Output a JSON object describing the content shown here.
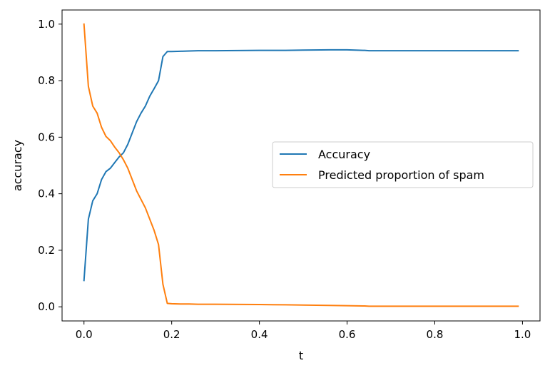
{
  "chart_data": {
    "type": "line",
    "xlabel": "t",
    "ylabel": "accuracy",
    "xlim": [
      -0.05,
      1.04
    ],
    "ylim": [
      -0.05,
      1.05
    ],
    "xticks": [
      0.0,
      0.2,
      0.4,
      0.6,
      0.8,
      1.0
    ],
    "xtick_labels": [
      "0.0",
      "0.2",
      "0.4",
      "0.6",
      "0.8",
      "1.0"
    ],
    "yticks": [
      0.0,
      0.2,
      0.4,
      0.6,
      0.8,
      1.0
    ],
    "ytick_labels": [
      "0.0",
      "0.2",
      "0.4",
      "0.6",
      "0.8",
      "1.0"
    ],
    "grid": false,
    "legend_position": "center-right",
    "series": [
      {
        "name": "Accuracy",
        "color": "#1f77b4",
        "x": [
          0.0,
          0.01,
          0.02,
          0.03,
          0.04,
          0.05,
          0.06,
          0.07,
          0.08,
          0.09,
          0.1,
          0.11,
          0.12,
          0.13,
          0.14,
          0.15,
          0.16,
          0.17,
          0.18,
          0.19,
          0.2,
          0.22,
          0.24,
          0.26,
          0.3,
          0.4,
          0.46,
          0.5,
          0.56,
          0.6,
          0.64,
          0.65,
          0.7,
          0.8,
          0.9,
          0.99
        ],
        "y": [
          0.093,
          0.31,
          0.375,
          0.4,
          0.45,
          0.478,
          0.49,
          0.51,
          0.53,
          0.545,
          0.575,
          0.615,
          0.655,
          0.685,
          0.71,
          0.745,
          0.772,
          0.8,
          0.885,
          0.903,
          0.903,
          0.904,
          0.905,
          0.906,
          0.906,
          0.907,
          0.907,
          0.908,
          0.909,
          0.909,
          0.907,
          0.906,
          0.906,
          0.906,
          0.906,
          0.906
        ]
      },
      {
        "name": "Predicted proportion of spam",
        "color": "#ff7f0e",
        "x": [
          0.0,
          0.01,
          0.02,
          0.03,
          0.04,
          0.05,
          0.06,
          0.07,
          0.08,
          0.09,
          0.1,
          0.11,
          0.12,
          0.13,
          0.14,
          0.15,
          0.16,
          0.17,
          0.18,
          0.19,
          0.2,
          0.22,
          0.24,
          0.26,
          0.3,
          0.4,
          0.46,
          0.5,
          0.56,
          0.6,
          0.64,
          0.65,
          0.7,
          0.8,
          0.9,
          0.99
        ],
        "y": [
          1.0,
          0.78,
          0.71,
          0.685,
          0.635,
          0.603,
          0.588,
          0.565,
          0.545,
          0.52,
          0.49,
          0.45,
          0.41,
          0.38,
          0.35,
          0.31,
          0.27,
          0.22,
          0.08,
          0.012,
          0.011,
          0.01,
          0.01,
          0.009,
          0.009,
          0.008,
          0.007,
          0.006,
          0.005,
          0.004,
          0.003,
          0.002,
          0.002,
          0.002,
          0.002,
          0.002
        ]
      }
    ]
  }
}
